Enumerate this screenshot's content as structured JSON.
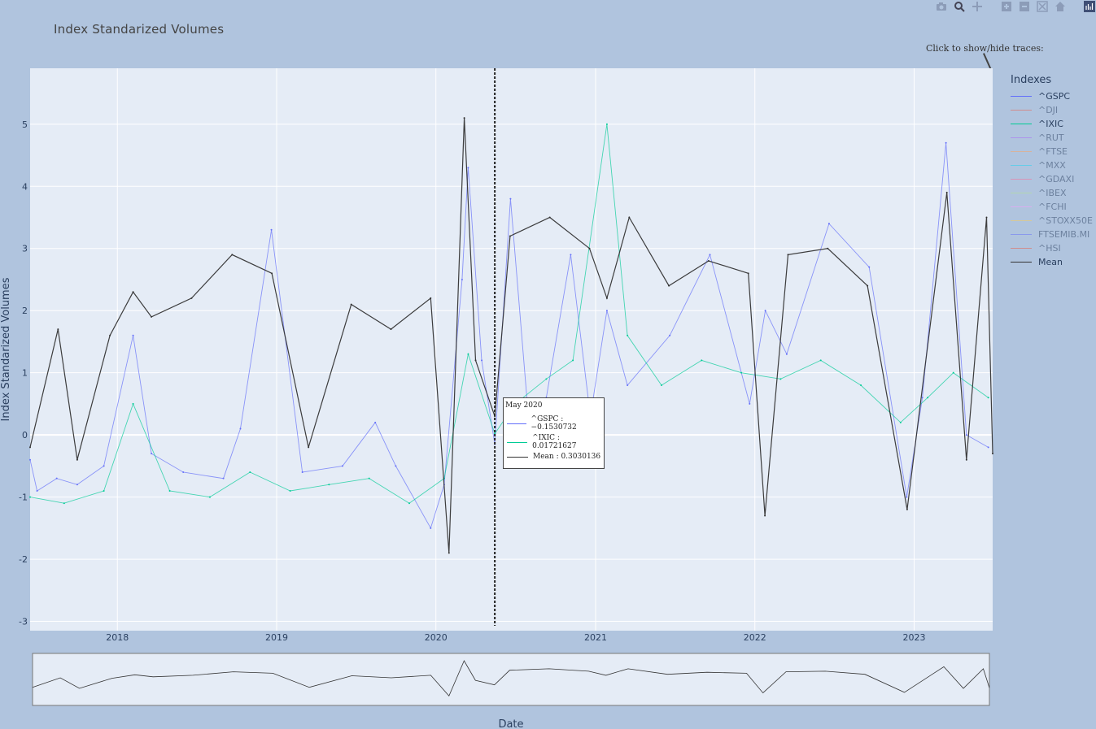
{
  "title": "Index Standarized Volumes",
  "hint": "Click to show/hide traces:",
  "modebar": [
    {
      "icon": "camera-icon"
    },
    {
      "icon": "zoom-icon"
    },
    {
      "icon": "pan-icon"
    },
    {
      "icon": "zoom-in-icon"
    },
    {
      "icon": "zoom-out-icon"
    },
    {
      "icon": "autoscale-icon"
    },
    {
      "icon": "reset-axes-icon"
    },
    {
      "icon": "plotly-logo-icon"
    }
  ],
  "legend": {
    "title": "Indexes",
    "items": [
      {
        "label": "^GSPC",
        "color": "#636efa",
        "visible": true
      },
      {
        "label": "^DJI",
        "color": "#ef553b",
        "visible": false
      },
      {
        "label": "^IXIC",
        "color": "#00cc96",
        "visible": true
      },
      {
        "label": "^RUT",
        "color": "#ab63fa",
        "visible": false
      },
      {
        "label": "^FTSE",
        "color": "#ffa15a",
        "visible": false
      },
      {
        "label": "^MXX",
        "color": "#19d3f3",
        "visible": false
      },
      {
        "label": "^GDAXI",
        "color": "#ff6692",
        "visible": false
      },
      {
        "label": "^IBEX",
        "color": "#b6e880",
        "visible": false
      },
      {
        "label": "^FCHI",
        "color": "#ff97ff",
        "visible": false
      },
      {
        "label": "^STOXX50E",
        "color": "#fecb52",
        "visible": false
      },
      {
        "label": "FTSEMIB.MI",
        "color": "#636efa",
        "visible": false
      },
      {
        "label": "^HSI",
        "color": "#ef553b",
        "visible": false
      },
      {
        "label": "Mean",
        "color": "#333333",
        "visible": true
      }
    ]
  },
  "hover": {
    "date": "May 2020",
    "rows": [
      {
        "text": "^GSPC : −0.1530732",
        "color": "#636efa"
      },
      {
        "text": "^IXIC : 0.01721627",
        "color": "#00cc96"
      },
      {
        "text": "Mean : 0.3030136",
        "color": "#333333"
      }
    ]
  },
  "chart_data": {
    "type": "line",
    "title": "Index Standarized Volumes",
    "xlabel": "Date",
    "ylabel": "Index Standarized Volumes",
    "xlim": [
      "2017-06-15",
      "2023-06-30"
    ],
    "ylim": [
      -3.15,
      5.9
    ],
    "x_ticks": [
      "2018",
      "2019",
      "2020",
      "2021",
      "2022",
      "2023"
    ],
    "y_ticks": [
      -3,
      -2,
      -1,
      0,
      1,
      2,
      3,
      4,
      5
    ],
    "grid": true,
    "legend_position": "right",
    "hover_line_date": "2020-05-15",
    "rangeslider": true,
    "series": [
      {
        "name": "^GSPC",
        "color": "#636efa",
        "points": [
          [
            "2017-06-15",
            -0.4
          ],
          [
            "2017-07-01",
            -0.9
          ],
          [
            "2017-08-15",
            -0.7
          ],
          [
            "2017-10-01",
            -0.8
          ],
          [
            "2017-12-01",
            -0.5
          ],
          [
            "2018-02-06",
            1.6
          ],
          [
            "2018-03-20",
            -0.3
          ],
          [
            "2018-06-01",
            -0.6
          ],
          [
            "2018-09-01",
            -0.7
          ],
          [
            "2018-10-10",
            0.1
          ],
          [
            "2018-12-20",
            3.3
          ],
          [
            "2019-03-01",
            -0.6
          ],
          [
            "2019-06-01",
            -0.5
          ],
          [
            "2019-08-15",
            0.2
          ],
          [
            "2019-10-01",
            -0.5
          ],
          [
            "2019-12-20",
            -1.5
          ],
          [
            "2020-01-20",
            -0.8
          ],
          [
            "2020-03-01",
            2.5
          ],
          [
            "2020-03-15",
            4.3
          ],
          [
            "2020-04-15",
            1.2
          ],
          [
            "2020-05-15",
            -0.15
          ],
          [
            "2020-06-20",
            3.8
          ],
          [
            "2020-08-01",
            0.2
          ],
          [
            "2020-09-10",
            0.6
          ],
          [
            "2020-11-05",
            2.9
          ],
          [
            "2020-12-20",
            0.3
          ],
          [
            "2021-01-27",
            2.0
          ],
          [
            "2021-03-15",
            0.8
          ],
          [
            "2021-06-20",
            1.6
          ],
          [
            "2021-09-20",
            2.9
          ],
          [
            "2021-12-20",
            0.5
          ],
          [
            "2022-01-25",
            2.0
          ],
          [
            "2022-03-15",
            1.3
          ],
          [
            "2022-06-20",
            3.4
          ],
          [
            "2022-09-20",
            2.7
          ],
          [
            "2022-12-15",
            -1.0
          ],
          [
            "2023-01-20",
            0.6
          ],
          [
            "2023-03-15",
            4.7
          ],
          [
            "2023-05-01",
            0.0
          ],
          [
            "2023-06-20",
            -0.2
          ]
        ]
      },
      {
        "name": "^IXIC",
        "color": "#00cc96",
        "points": [
          [
            "2017-06-15",
            -1.0
          ],
          [
            "2017-09-01",
            -1.1
          ],
          [
            "2017-12-01",
            -0.9
          ],
          [
            "2018-02-06",
            0.5
          ],
          [
            "2018-05-01",
            -0.9
          ],
          [
            "2018-08-01",
            -1.0
          ],
          [
            "2018-11-01",
            -0.6
          ],
          [
            "2019-02-01",
            -0.9
          ],
          [
            "2019-05-01",
            -0.8
          ],
          [
            "2019-08-01",
            -0.7
          ],
          [
            "2019-11-01",
            -1.1
          ],
          [
            "2020-01-20",
            -0.7
          ],
          [
            "2020-03-15",
            1.3
          ],
          [
            "2020-05-15",
            0.02
          ],
          [
            "2020-07-01",
            0.5
          ],
          [
            "2020-09-10",
            0.9
          ],
          [
            "2020-11-10",
            1.2
          ],
          [
            "2021-01-27",
            5.0
          ],
          [
            "2021-03-15",
            1.6
          ],
          [
            "2021-06-01",
            0.8
          ],
          [
            "2021-09-01",
            1.2
          ],
          [
            "2021-12-01",
            1.0
          ],
          [
            "2022-03-01",
            0.9
          ],
          [
            "2022-06-01",
            1.2
          ],
          [
            "2022-09-01",
            0.8
          ],
          [
            "2022-12-01",
            0.2
          ],
          [
            "2023-02-01",
            0.6
          ],
          [
            "2023-04-01",
            1.0
          ],
          [
            "2023-06-20",
            0.6
          ]
        ]
      },
      {
        "name": "Mean",
        "color": "#333333",
        "points": [
          [
            "2017-06-15",
            -0.2
          ],
          [
            "2017-08-18",
            1.7
          ],
          [
            "2017-10-01",
            -0.4
          ],
          [
            "2017-12-15",
            1.6
          ],
          [
            "2018-02-06",
            2.3
          ],
          [
            "2018-03-20",
            1.9
          ],
          [
            "2018-06-20",
            2.2
          ],
          [
            "2018-09-21",
            2.9
          ],
          [
            "2018-12-21",
            2.6
          ],
          [
            "2019-03-15",
            -0.2
          ],
          [
            "2019-06-21",
            2.1
          ],
          [
            "2019-09-20",
            1.7
          ],
          [
            "2019-12-20",
            2.2
          ],
          [
            "2020-01-31",
            -1.9
          ],
          [
            "2020-03-06",
            5.1
          ],
          [
            "2020-04-01",
            1.2
          ],
          [
            "2020-05-15",
            0.3
          ],
          [
            "2020-06-19",
            3.2
          ],
          [
            "2020-09-18",
            3.5
          ],
          [
            "2020-12-18",
            3.0
          ],
          [
            "2021-01-27",
            2.2
          ],
          [
            "2021-03-19",
            3.5
          ],
          [
            "2021-06-18",
            2.4
          ],
          [
            "2021-09-17",
            2.8
          ],
          [
            "2021-12-17",
            2.6
          ],
          [
            "2022-01-24",
            -1.3
          ],
          [
            "2022-03-18",
            2.9
          ],
          [
            "2022-06-17",
            3.0
          ],
          [
            "2022-09-16",
            2.4
          ],
          [
            "2022-12-16",
            -1.2
          ],
          [
            "2023-03-17",
            3.9
          ],
          [
            "2023-05-01",
            -0.4
          ],
          [
            "2023-06-16",
            3.5
          ],
          [
            "2023-06-30",
            -0.3
          ]
        ]
      }
    ]
  }
}
